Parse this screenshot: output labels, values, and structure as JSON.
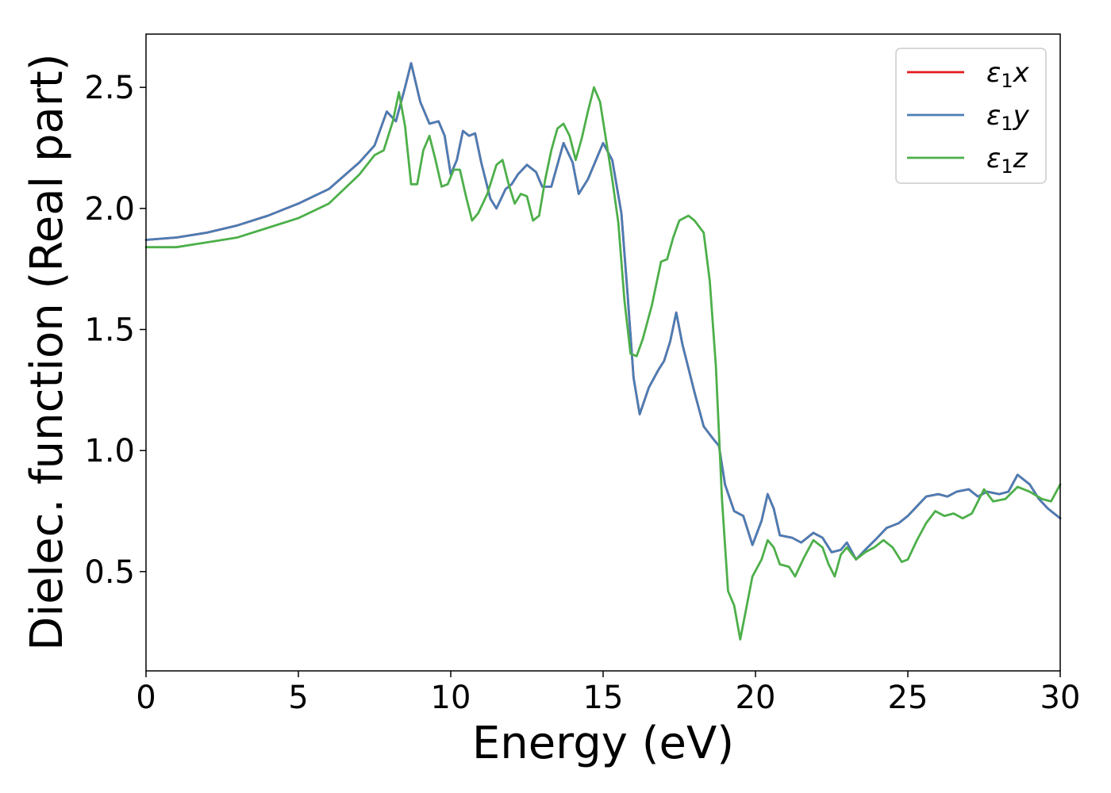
{
  "chart_data": {
    "type": "line",
    "title": "",
    "xlabel": "Energy (eV)",
    "ylabel": "Dielec. function (Real part)",
    "xlim": [
      0,
      30
    ],
    "ylim": [
      0.09,
      2.72
    ],
    "xticks": [
      0,
      5,
      10,
      15,
      20,
      25,
      30
    ],
    "xtick_labels": [
      "0",
      "5",
      "10",
      "15",
      "20",
      "25",
      "30"
    ],
    "yticks": [
      0.5,
      1.0,
      1.5,
      2.0,
      2.5
    ],
    "ytick_labels": [
      "0.5",
      "1.0",
      "1.5",
      "2.0",
      "2.5"
    ],
    "grid": false,
    "legend_position": "top-right",
    "series": [
      {
        "name": "ε₁x",
        "legend_main": "ε",
        "legend_sub": "1",
        "legend_var": "x",
        "color": "#e41a1c",
        "x": [
          0,
          1,
          2,
          3,
          4,
          5,
          6,
          7,
          7.5,
          7.9,
          8.2,
          8.5,
          8.7,
          9.0,
          9.3,
          9.6,
          9.8,
          10.0,
          10.2,
          10.4,
          10.6,
          10.8,
          11.0,
          11.3,
          11.5,
          11.8,
          12.0,
          12.2,
          12.5,
          12.8,
          13.0,
          13.3,
          13.7,
          14.0,
          14.2,
          14.5,
          14.8,
          15.0,
          15.3,
          15.6,
          15.8,
          16.0,
          16.2,
          16.5,
          16.8,
          17.0,
          17.2,
          17.4,
          17.6,
          18.0,
          18.3,
          18.6,
          18.8,
          19.0,
          19.3,
          19.6,
          19.9,
          20.2,
          20.4,
          20.6,
          20.8,
          21.2,
          21.5,
          21.9,
          22.2,
          22.5,
          22.8,
          23.0,
          23.3,
          23.6,
          24.0,
          24.3,
          24.7,
          25.0,
          25.3,
          25.6,
          26.0,
          26.3,
          26.6,
          27.0,
          27.3,
          27.6,
          28.0,
          28.3,
          28.6,
          29.0,
          29.3,
          29.6,
          30.0
        ],
        "y": [
          1.87,
          1.88,
          1.9,
          1.93,
          1.97,
          2.02,
          2.08,
          2.19,
          2.26,
          2.4,
          2.36,
          2.5,
          2.6,
          2.44,
          2.35,
          2.36,
          2.3,
          2.14,
          2.2,
          2.32,
          2.3,
          2.31,
          2.19,
          2.04,
          2.0,
          2.08,
          2.1,
          2.14,
          2.18,
          2.15,
          2.09,
          2.09,
          2.27,
          2.19,
          2.06,
          2.12,
          2.21,
          2.27,
          2.2,
          1.98,
          1.65,
          1.3,
          1.15,
          1.26,
          1.33,
          1.37,
          1.45,
          1.57,
          1.44,
          1.24,
          1.1,
          1.05,
          1.02,
          0.86,
          0.75,
          0.73,
          0.61,
          0.71,
          0.82,
          0.76,
          0.65,
          0.64,
          0.62,
          0.66,
          0.64,
          0.58,
          0.59,
          0.62,
          0.55,
          0.59,
          0.64,
          0.68,
          0.7,
          0.73,
          0.77,
          0.81,
          0.82,
          0.81,
          0.83,
          0.84,
          0.81,
          0.83,
          0.82,
          0.83,
          0.9,
          0.86,
          0.8,
          0.76,
          0.72
        ]
      },
      {
        "name": "ε₁y",
        "legend_main": "ε",
        "legend_sub": "1",
        "legend_var": "y",
        "color": "#4a7db5",
        "x": [
          0,
          1,
          2,
          3,
          4,
          5,
          6,
          7,
          7.5,
          7.9,
          8.2,
          8.5,
          8.7,
          9.0,
          9.3,
          9.6,
          9.8,
          10.0,
          10.2,
          10.4,
          10.6,
          10.8,
          11.0,
          11.3,
          11.5,
          11.8,
          12.0,
          12.2,
          12.5,
          12.8,
          13.0,
          13.3,
          13.7,
          14.0,
          14.2,
          14.5,
          14.8,
          15.0,
          15.3,
          15.6,
          15.8,
          16.0,
          16.2,
          16.5,
          16.8,
          17.0,
          17.2,
          17.4,
          17.6,
          18.0,
          18.3,
          18.6,
          18.8,
          19.0,
          19.3,
          19.6,
          19.9,
          20.2,
          20.4,
          20.6,
          20.8,
          21.2,
          21.5,
          21.9,
          22.2,
          22.5,
          22.8,
          23.0,
          23.3,
          23.6,
          24.0,
          24.3,
          24.7,
          25.0,
          25.3,
          25.6,
          26.0,
          26.3,
          26.6,
          27.0,
          27.3,
          27.6,
          28.0,
          28.3,
          28.6,
          29.0,
          29.3,
          29.6,
          30.0
        ],
        "y": [
          1.87,
          1.88,
          1.9,
          1.93,
          1.97,
          2.02,
          2.08,
          2.19,
          2.26,
          2.4,
          2.36,
          2.5,
          2.6,
          2.44,
          2.35,
          2.36,
          2.3,
          2.14,
          2.2,
          2.32,
          2.3,
          2.31,
          2.19,
          2.04,
          2.0,
          2.08,
          2.1,
          2.14,
          2.18,
          2.15,
          2.09,
          2.09,
          2.27,
          2.19,
          2.06,
          2.12,
          2.21,
          2.27,
          2.2,
          1.98,
          1.65,
          1.3,
          1.15,
          1.26,
          1.33,
          1.37,
          1.45,
          1.57,
          1.44,
          1.24,
          1.1,
          1.05,
          1.02,
          0.86,
          0.75,
          0.73,
          0.61,
          0.71,
          0.82,
          0.76,
          0.65,
          0.64,
          0.62,
          0.66,
          0.64,
          0.58,
          0.59,
          0.62,
          0.55,
          0.59,
          0.64,
          0.68,
          0.7,
          0.73,
          0.77,
          0.81,
          0.82,
          0.81,
          0.83,
          0.84,
          0.81,
          0.83,
          0.82,
          0.83,
          0.9,
          0.86,
          0.8,
          0.76,
          0.72
        ]
      },
      {
        "name": "ε₁z",
        "legend_main": "ε",
        "legend_sub": "1",
        "legend_var": "z",
        "color": "#4daf4a",
        "x": [
          0,
          1,
          2,
          3,
          4,
          5,
          6,
          7,
          7.5,
          7.8,
          8.1,
          8.3,
          8.5,
          8.7,
          8.9,
          9.1,
          9.3,
          9.5,
          9.7,
          9.9,
          10.1,
          10.3,
          10.5,
          10.7,
          10.9,
          11.2,
          11.5,
          11.7,
          11.9,
          12.1,
          12.3,
          12.5,
          12.7,
          12.9,
          13.1,
          13.3,
          13.5,
          13.7,
          13.9,
          14.1,
          14.3,
          14.5,
          14.7,
          14.9,
          15.1,
          15.3,
          15.5,
          15.7,
          15.9,
          16.1,
          16.3,
          16.6,
          16.9,
          17.1,
          17.3,
          17.5,
          17.8,
          18.0,
          18.3,
          18.5,
          18.7,
          18.9,
          19.1,
          19.3,
          19.5,
          19.7,
          19.9,
          20.2,
          20.4,
          20.6,
          20.8,
          21.1,
          21.3,
          21.6,
          21.9,
          22.2,
          22.4,
          22.6,
          22.8,
          23.0,
          23.3,
          23.6,
          23.9,
          24.2,
          24.5,
          24.8,
          25.0,
          25.3,
          25.6,
          25.9,
          26.2,
          26.5,
          26.8,
          27.1,
          27.5,
          27.8,
          28.2,
          28.6,
          29.0,
          29.4,
          29.7,
          30.0
        ],
        "y": [
          1.84,
          1.84,
          1.86,
          1.88,
          1.92,
          1.96,
          2.02,
          2.14,
          2.22,
          2.24,
          2.36,
          2.48,
          2.34,
          2.1,
          2.1,
          2.24,
          2.3,
          2.2,
          2.09,
          2.1,
          2.16,
          2.16,
          2.05,
          1.95,
          1.98,
          2.06,
          2.18,
          2.2,
          2.1,
          2.02,
          2.06,
          2.05,
          1.95,
          1.97,
          2.12,
          2.24,
          2.33,
          2.35,
          2.3,
          2.2,
          2.29,
          2.4,
          2.5,
          2.44,
          2.28,
          2.12,
          1.94,
          1.62,
          1.4,
          1.39,
          1.46,
          1.6,
          1.78,
          1.79,
          1.88,
          1.95,
          1.97,
          1.95,
          1.9,
          1.7,
          1.35,
          0.8,
          0.42,
          0.36,
          0.22,
          0.35,
          0.48,
          0.55,
          0.63,
          0.6,
          0.53,
          0.52,
          0.48,
          0.56,
          0.63,
          0.6,
          0.53,
          0.48,
          0.57,
          0.6,
          0.55,
          0.58,
          0.6,
          0.63,
          0.6,
          0.54,
          0.55,
          0.63,
          0.7,
          0.75,
          0.73,
          0.74,
          0.72,
          0.74,
          0.84,
          0.79,
          0.8,
          0.85,
          0.83,
          0.8,
          0.79,
          0.86
        ]
      }
    ]
  }
}
